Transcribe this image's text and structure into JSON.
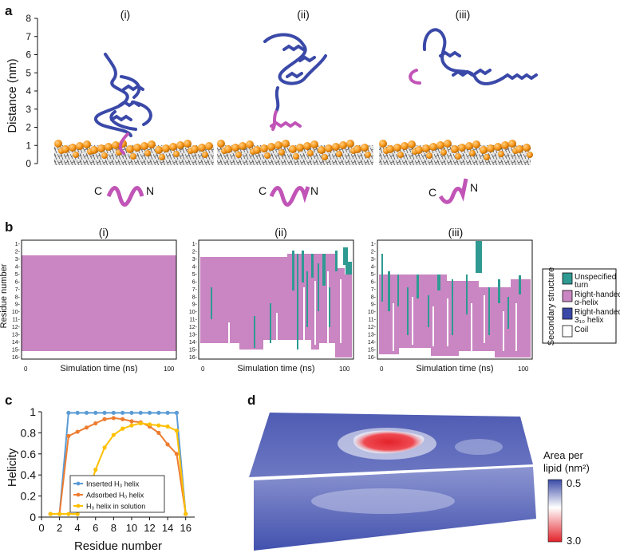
{
  "panel_labels": {
    "a": "a",
    "b": "b",
    "c": "c",
    "d": "d"
  },
  "panel_a": {
    "ylabel": "Distance (nm)",
    "yticks": [
      "0",
      "1",
      "2",
      "3",
      "4",
      "5",
      "6",
      "7",
      "8"
    ],
    "states": [
      "(i)",
      "(ii)",
      "(iii)"
    ],
    "terminal_c": "C",
    "terminal_n": "N"
  },
  "panel_b": {
    "states": [
      "(i)",
      "(ii)",
      "(iii)"
    ],
    "ylabel": "Residue number",
    "xlabel": "Simulation time (ns)",
    "x0": "0",
    "x1": "100",
    "residues": [
      "1",
      "2",
      "3",
      "4",
      "5",
      "6",
      "7",
      "8",
      "9",
      "10",
      "11",
      "12",
      "13",
      "14",
      "15",
      "16"
    ],
    "legend_title": "Secondary structure",
    "legend": [
      {
        "label1": "Unspecified",
        "label2": "turn",
        "color": "#2e9a92"
      },
      {
        "label1": "Right-handed",
        "label2": "α-helix",
        "color": "#c986c2"
      },
      {
        "label1": "Right-handed",
        "label2": "3₁₀ helix",
        "color": "#3a49a8"
      },
      {
        "label1": "Coil",
        "label2": "",
        "color": "#ffffff"
      }
    ]
  },
  "panel_c": {
    "ylabel": "Helicity",
    "xlabel": "Residue number",
    "xticks": [
      "0",
      "2",
      "4",
      "6",
      "8",
      "10",
      "12",
      "14",
      "16"
    ],
    "yticks": [
      "0",
      "0.2",
      "0.4",
      "0.6",
      "0.8",
      "1"
    ]
  },
  "chart_data": {
    "type": "line",
    "xlabel": "Residue number",
    "ylabel": "Helicity",
    "xlim": [
      0,
      17
    ],
    "ylim": [
      0,
      1.0
    ],
    "x": [
      1,
      2,
      3,
      4,
      5,
      6,
      7,
      8,
      9,
      10,
      11,
      12,
      13,
      14,
      15,
      16
    ],
    "series": [
      {
        "name": "Inserted H₀ helix",
        "color": "#5b9bd5",
        "values": [
          0.03,
          0.03,
          0.99,
          0.99,
          0.99,
          0.99,
          0.99,
          0.99,
          0.99,
          0.99,
          0.99,
          0.99,
          0.99,
          0.99,
          0.99,
          0.03
        ]
      },
      {
        "name": "Adsorbed H₀ helix",
        "color": "#ed7d31",
        "values": [
          0.03,
          0.03,
          0.77,
          0.81,
          0.85,
          0.89,
          0.93,
          0.94,
          0.93,
          0.91,
          0.9,
          0.86,
          0.8,
          0.69,
          0.6,
          0.03
        ]
      },
      {
        "name": "H₀ helix in solution",
        "color": "#ffc000",
        "values": [
          0.03,
          0.03,
          0.03,
          0.03,
          0.18,
          0.45,
          0.66,
          0.78,
          0.84,
          0.87,
          0.89,
          0.88,
          0.87,
          0.86,
          0.82,
          0.03
        ]
      }
    ]
  },
  "panel_d": {
    "cbar_title1": "Area per",
    "cbar_title2": "lipid (nm²)",
    "cbar_min": "0.5",
    "cbar_max": "3.0"
  }
}
